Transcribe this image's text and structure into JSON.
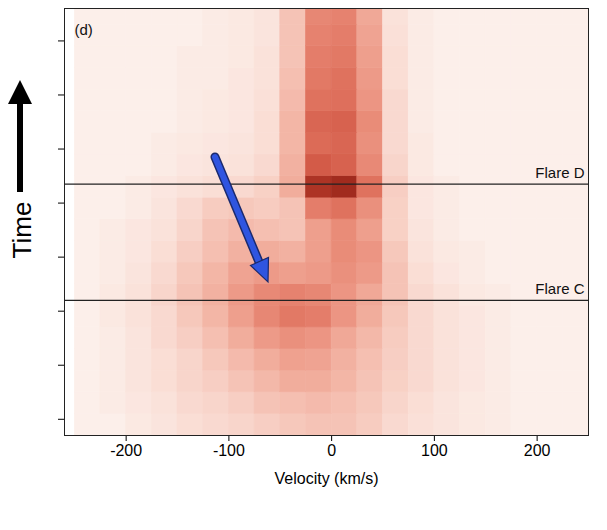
{
  "chart_data": {
    "type": "heatmap",
    "panel_label": "(d)",
    "xlabel": "Velocity (km/s)",
    "ylabel": "Time",
    "xlim": [
      -260,
      250
    ],
    "xticks": [
      -200,
      -100,
      0,
      100,
      200
    ],
    "ylim": [
      0.7,
      8.6
    ],
    "yticks": [
      1,
      2,
      3,
      4,
      5,
      6,
      7,
      8
    ],
    "tick_labels": "x",
    "velocity_bins": [
      -250,
      -225,
      -200,
      -175,
      -150,
      -125,
      -100,
      -75,
      -50,
      -25,
      0,
      25,
      50,
      75,
      100,
      125,
      150,
      175,
      200,
      225,
      250
    ],
    "time_bins": [
      0.7,
      1.1,
      1.5,
      1.9,
      2.3,
      2.7,
      3.1,
      3.5,
      3.9,
      4.3,
      4.7,
      5.1,
      5.5,
      5.9,
      6.3,
      6.7,
      7.1,
      7.5,
      7.9,
      8.3,
      8.6
    ],
    "intensity_range": [
      0,
      1
    ],
    "intensity": [
      [
        0,
        0,
        0.03,
        0.05,
        0.08,
        0.1,
        0.12,
        0.15,
        0.18,
        0.2,
        0.2,
        0.16,
        0.1,
        0.07,
        0.05,
        0.03,
        0.02,
        0,
        0,
        0
      ],
      [
        0,
        0.02,
        0.04,
        0.06,
        0.1,
        0.12,
        0.15,
        0.2,
        0.22,
        0.24,
        0.22,
        0.18,
        0.12,
        0.08,
        0.05,
        0.03,
        0.02,
        0,
        0,
        0
      ],
      [
        0,
        0.02,
        0.05,
        0.08,
        0.12,
        0.15,
        0.2,
        0.25,
        0.3,
        0.3,
        0.26,
        0.2,
        0.14,
        0.1,
        0.06,
        0.04,
        0.02,
        0,
        0,
        0
      ],
      [
        0,
        0.02,
        0.05,
        0.08,
        0.12,
        0.18,
        0.24,
        0.3,
        0.35,
        0.34,
        0.28,
        0.22,
        0.15,
        0.1,
        0.06,
        0.04,
        0.02,
        0,
        0,
        0
      ],
      [
        0,
        0.02,
        0.05,
        0.1,
        0.15,
        0.22,
        0.3,
        0.38,
        0.42,
        0.4,
        0.32,
        0.25,
        0.16,
        0.1,
        0.06,
        0.04,
        0.02,
        0,
        0,
        0
      ],
      [
        0,
        0.03,
        0.06,
        0.1,
        0.18,
        0.26,
        0.36,
        0.46,
        0.52,
        0.5,
        0.4,
        0.3,
        0.18,
        0.1,
        0.06,
        0.04,
        0.02,
        0,
        0,
        0
      ],
      [
        0,
        0.03,
        0.06,
        0.12,
        0.2,
        0.28,
        0.38,
        0.45,
        0.48,
        0.46,
        0.4,
        0.32,
        0.2,
        0.1,
        0.06,
        0.03,
        0.02,
        0,
        0,
        0
      ],
      [
        0,
        0.02,
        0.05,
        0.1,
        0.18,
        0.26,
        0.34,
        0.38,
        0.36,
        0.38,
        0.42,
        0.38,
        0.2,
        0.08,
        0.04,
        0.02,
        0,
        0,
        0,
        0
      ],
      [
        0,
        0.02,
        0.04,
        0.08,
        0.15,
        0.22,
        0.28,
        0.3,
        0.28,
        0.36,
        0.44,
        0.4,
        0.18,
        0.06,
        0.03,
        0.02,
        0,
        0,
        0,
        0
      ],
      [
        0,
        0.02,
        0.04,
        0.06,
        0.12,
        0.2,
        0.24,
        0.22,
        0.2,
        0.36,
        0.44,
        0.36,
        0.14,
        0.05,
        0.02,
        0,
        0,
        0,
        0,
        0
      ],
      [
        0,
        0,
        0.02,
        0.05,
        0.1,
        0.16,
        0.18,
        0.16,
        0.2,
        0.5,
        0.55,
        0.42,
        0.14,
        0.04,
        0.02,
        0,
        0,
        0,
        0,
        0
      ],
      [
        0,
        0,
        0.02,
        0.04,
        0.06,
        0.08,
        0.1,
        0.14,
        0.3,
        0.85,
        0.9,
        0.55,
        0.15,
        0.04,
        0.02,
        0,
        0,
        0,
        0,
        0
      ],
      [
        0,
        0,
        0,
        0.02,
        0.04,
        0.05,
        0.06,
        0.1,
        0.28,
        0.65,
        0.62,
        0.45,
        0.12,
        0.03,
        0,
        0,
        0,
        0,
        0,
        0
      ],
      [
        0,
        0,
        0,
        0.02,
        0.03,
        0.04,
        0.05,
        0.08,
        0.26,
        0.58,
        0.6,
        0.42,
        0.1,
        0.03,
        0,
        0,
        0,
        0,
        0,
        0
      ],
      [
        0,
        0,
        0,
        0,
        0.02,
        0.03,
        0.04,
        0.08,
        0.26,
        0.6,
        0.62,
        0.44,
        0.1,
        0.02,
        0,
        0,
        0,
        0,
        0,
        0
      ],
      [
        0,
        0,
        0,
        0,
        0.02,
        0.03,
        0.04,
        0.07,
        0.24,
        0.55,
        0.56,
        0.4,
        0.1,
        0.02,
        0,
        0,
        0,
        0,
        0,
        0
      ],
      [
        0,
        0,
        0,
        0,
        0.02,
        0.02,
        0.04,
        0.06,
        0.22,
        0.52,
        0.55,
        0.38,
        0.08,
        0.02,
        0,
        0,
        0,
        0,
        0,
        0
      ],
      [
        0,
        0,
        0,
        0,
        0.02,
        0.02,
        0.03,
        0.06,
        0.2,
        0.5,
        0.52,
        0.36,
        0.08,
        0.02,
        0,
        0,
        0,
        0,
        0,
        0
      ],
      [
        0,
        0,
        0,
        0,
        0,
        0.02,
        0.03,
        0.05,
        0.2,
        0.48,
        0.5,
        0.34,
        0.07,
        0.02,
        0,
        0,
        0,
        0,
        0,
        0
      ],
      [
        0,
        0,
        0,
        0,
        0,
        0.02,
        0.03,
        0.05,
        0.2,
        0.46,
        0.48,
        0.32,
        0.06,
        0.02,
        0,
        0,
        0,
        0,
        0,
        0
      ]
    ],
    "flares": [
      {
        "label": "Flare D",
        "time": 5.35
      },
      {
        "label": "Flare C",
        "time": 3.2
      }
    ]
  }
}
